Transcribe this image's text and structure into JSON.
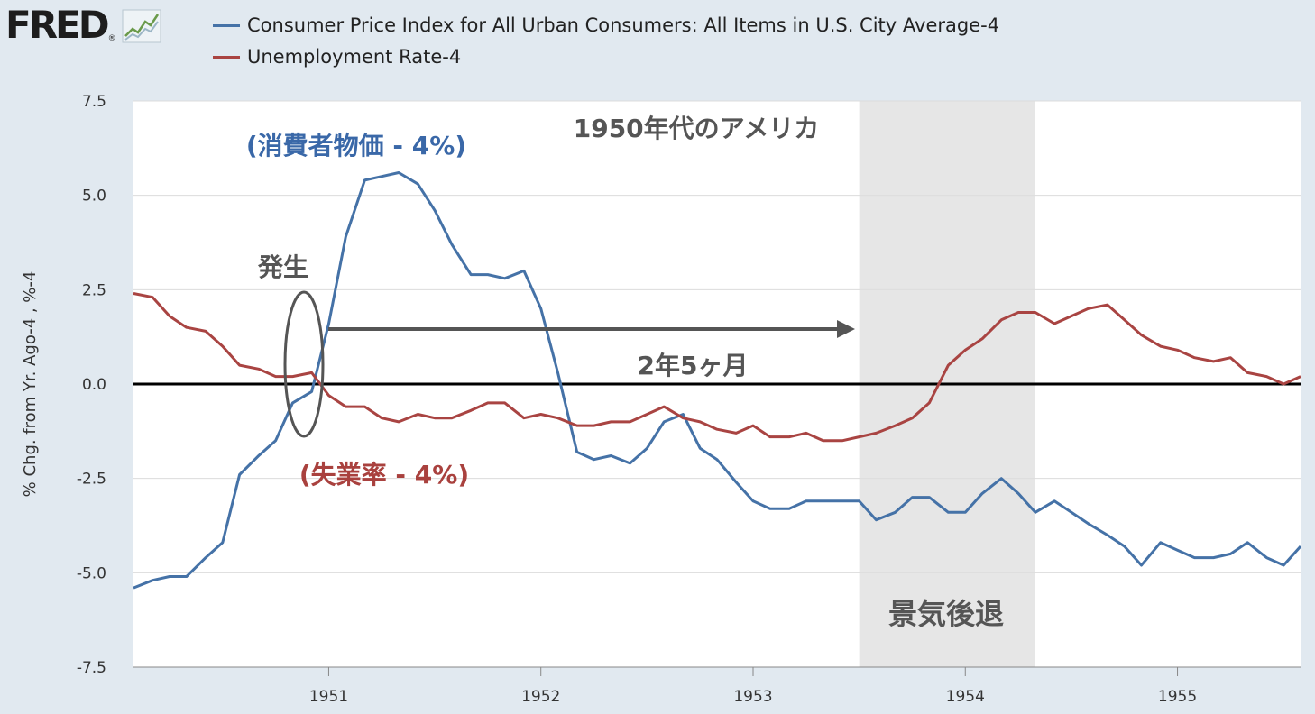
{
  "logo": {
    "text": "FRED",
    "reg": "®",
    "icon": "line-chart-icon"
  },
  "chart_data": {
    "type": "line",
    "ylabel": "% Chg. from Yr. Ago-4 , %-4",
    "ylim": [
      -7.5,
      7.5
    ],
    "yticks": [
      7.5,
      5.0,
      2.5,
      0.0,
      -2.5,
      -5.0,
      -7.5
    ],
    "ytick_labels": [
      "7.5",
      "5.0",
      "2.5",
      "0.0",
      "-2.5",
      "-5.0",
      "-7.5"
    ],
    "xlim": [
      1950.08,
      1955.58
    ],
    "xticks": [
      1951,
      1952,
      1953,
      1954,
      1955
    ],
    "xtick_labels": [
      "1951",
      "1952",
      "1953",
      "1954",
      "1955"
    ],
    "grid": "horizontal",
    "legend_position": "top",
    "recession": {
      "start": 1953.5,
      "end": 1954.33,
      "color": "#e6e6e6"
    },
    "zero_line": true,
    "series": [
      {
        "name": "Consumer Price Index for All Urban Consumers: All Items in U.S. City Average-4",
        "color": "#4572a7",
        "x": [
          1950.08,
          1950.17,
          1950.25,
          1950.33,
          1950.42,
          1950.5,
          1950.58,
          1950.67,
          1950.75,
          1950.83,
          1950.92,
          1951.0,
          1951.08,
          1951.17,
          1951.25,
          1951.33,
          1951.42,
          1951.5,
          1951.58,
          1951.67,
          1951.75,
          1951.83,
          1951.92,
          1952.0,
          1952.08,
          1952.17,
          1952.25,
          1952.33,
          1952.42,
          1952.5,
          1952.58,
          1952.67,
          1952.75,
          1952.83,
          1952.92,
          1953.0,
          1953.08,
          1953.17,
          1953.25,
          1953.33,
          1953.42,
          1953.5,
          1953.58,
          1953.67,
          1953.75,
          1953.83,
          1953.92,
          1954.0,
          1954.08,
          1954.17,
          1954.25,
          1954.33,
          1954.42,
          1954.5,
          1954.58,
          1954.67,
          1954.75,
          1954.83,
          1954.92,
          1955.0,
          1955.08,
          1955.17,
          1955.25,
          1955.33,
          1955.42,
          1955.5,
          1955.58
        ],
        "values": [
          -5.4,
          -5.2,
          -5.1,
          -5.1,
          -4.6,
          -4.2,
          -2.4,
          -1.9,
          -1.5,
          -0.5,
          -0.2,
          1.6,
          3.9,
          5.4,
          5.5,
          5.6,
          5.3,
          4.6,
          3.7,
          2.9,
          2.9,
          2.8,
          3.0,
          2.0,
          0.3,
          -1.8,
          -2.0,
          -1.9,
          -2.1,
          -1.7,
          -1.0,
          -0.8,
          -1.7,
          -2.0,
          -2.6,
          -3.1,
          -3.3,
          -3.3,
          -3.1,
          -3.1,
          -3.1,
          -3.1,
          -3.6,
          -3.4,
          -3.0,
          -3.0,
          -3.4,
          -3.4,
          -2.9,
          -2.5,
          -2.9,
          -3.4,
          -3.1,
          -3.4,
          -3.7,
          -4.0,
          -4.3,
          -4.8,
          -4.2,
          -4.4,
          -4.6,
          -4.6,
          -4.5,
          -4.2,
          -4.6,
          -4.8,
          -4.3
        ]
      },
      {
        "name": "Unemployment Rate-4",
        "color": "#a94442",
        "x": [
          1950.08,
          1950.17,
          1950.25,
          1950.33,
          1950.42,
          1950.5,
          1950.58,
          1950.67,
          1950.75,
          1950.83,
          1950.92,
          1951.0,
          1951.08,
          1951.17,
          1951.25,
          1951.33,
          1951.42,
          1951.5,
          1951.58,
          1951.67,
          1951.75,
          1951.83,
          1951.92,
          1952.0,
          1952.08,
          1952.17,
          1952.25,
          1952.33,
          1952.42,
          1952.5,
          1952.58,
          1952.67,
          1952.75,
          1952.83,
          1952.92,
          1953.0,
          1953.08,
          1953.17,
          1953.25,
          1953.33,
          1953.42,
          1953.5,
          1953.58,
          1953.67,
          1953.75,
          1953.83,
          1953.92,
          1954.0,
          1954.08,
          1954.17,
          1954.25,
          1954.33,
          1954.42,
          1954.5,
          1954.58,
          1954.67,
          1954.75,
          1954.83,
          1954.92,
          1955.0,
          1955.08,
          1955.17,
          1955.25,
          1955.33,
          1955.42,
          1955.5,
          1955.58
        ],
        "values": [
          2.4,
          2.3,
          1.8,
          1.5,
          1.4,
          1.0,
          0.5,
          0.4,
          0.2,
          0.2,
          0.3,
          -0.3,
          -0.6,
          -0.6,
          -0.9,
          -1.0,
          -0.8,
          -0.9,
          -0.9,
          -0.7,
          -0.5,
          -0.5,
          -0.9,
          -0.8,
          -0.9,
          -1.1,
          -1.1,
          -1.0,
          -1.0,
          -0.8,
          -0.6,
          -0.9,
          -1.0,
          -1.2,
          -1.3,
          -1.1,
          -1.4,
          -1.4,
          -1.3,
          -1.5,
          -1.5,
          -1.4,
          -1.3,
          -1.1,
          -0.9,
          -0.5,
          0.5,
          0.9,
          1.2,
          1.7,
          1.9,
          1.9,
          1.6,
          1.8,
          2.0,
          2.1,
          1.7,
          1.3,
          1.0,
          0.9,
          0.7,
          0.6,
          0.7,
          0.3,
          0.2,
          0.0,
          0.2
        ]
      }
    ],
    "annotations": {
      "cpi_label": "(消費者物価 - 4%)",
      "title_label": "1950年代のアメリカ",
      "onset_label": "発生",
      "duration_label": "2年5ヶ月",
      "unemployment_label": "(失業率 - 4%)",
      "recession_label": "景気後退"
    }
  }
}
